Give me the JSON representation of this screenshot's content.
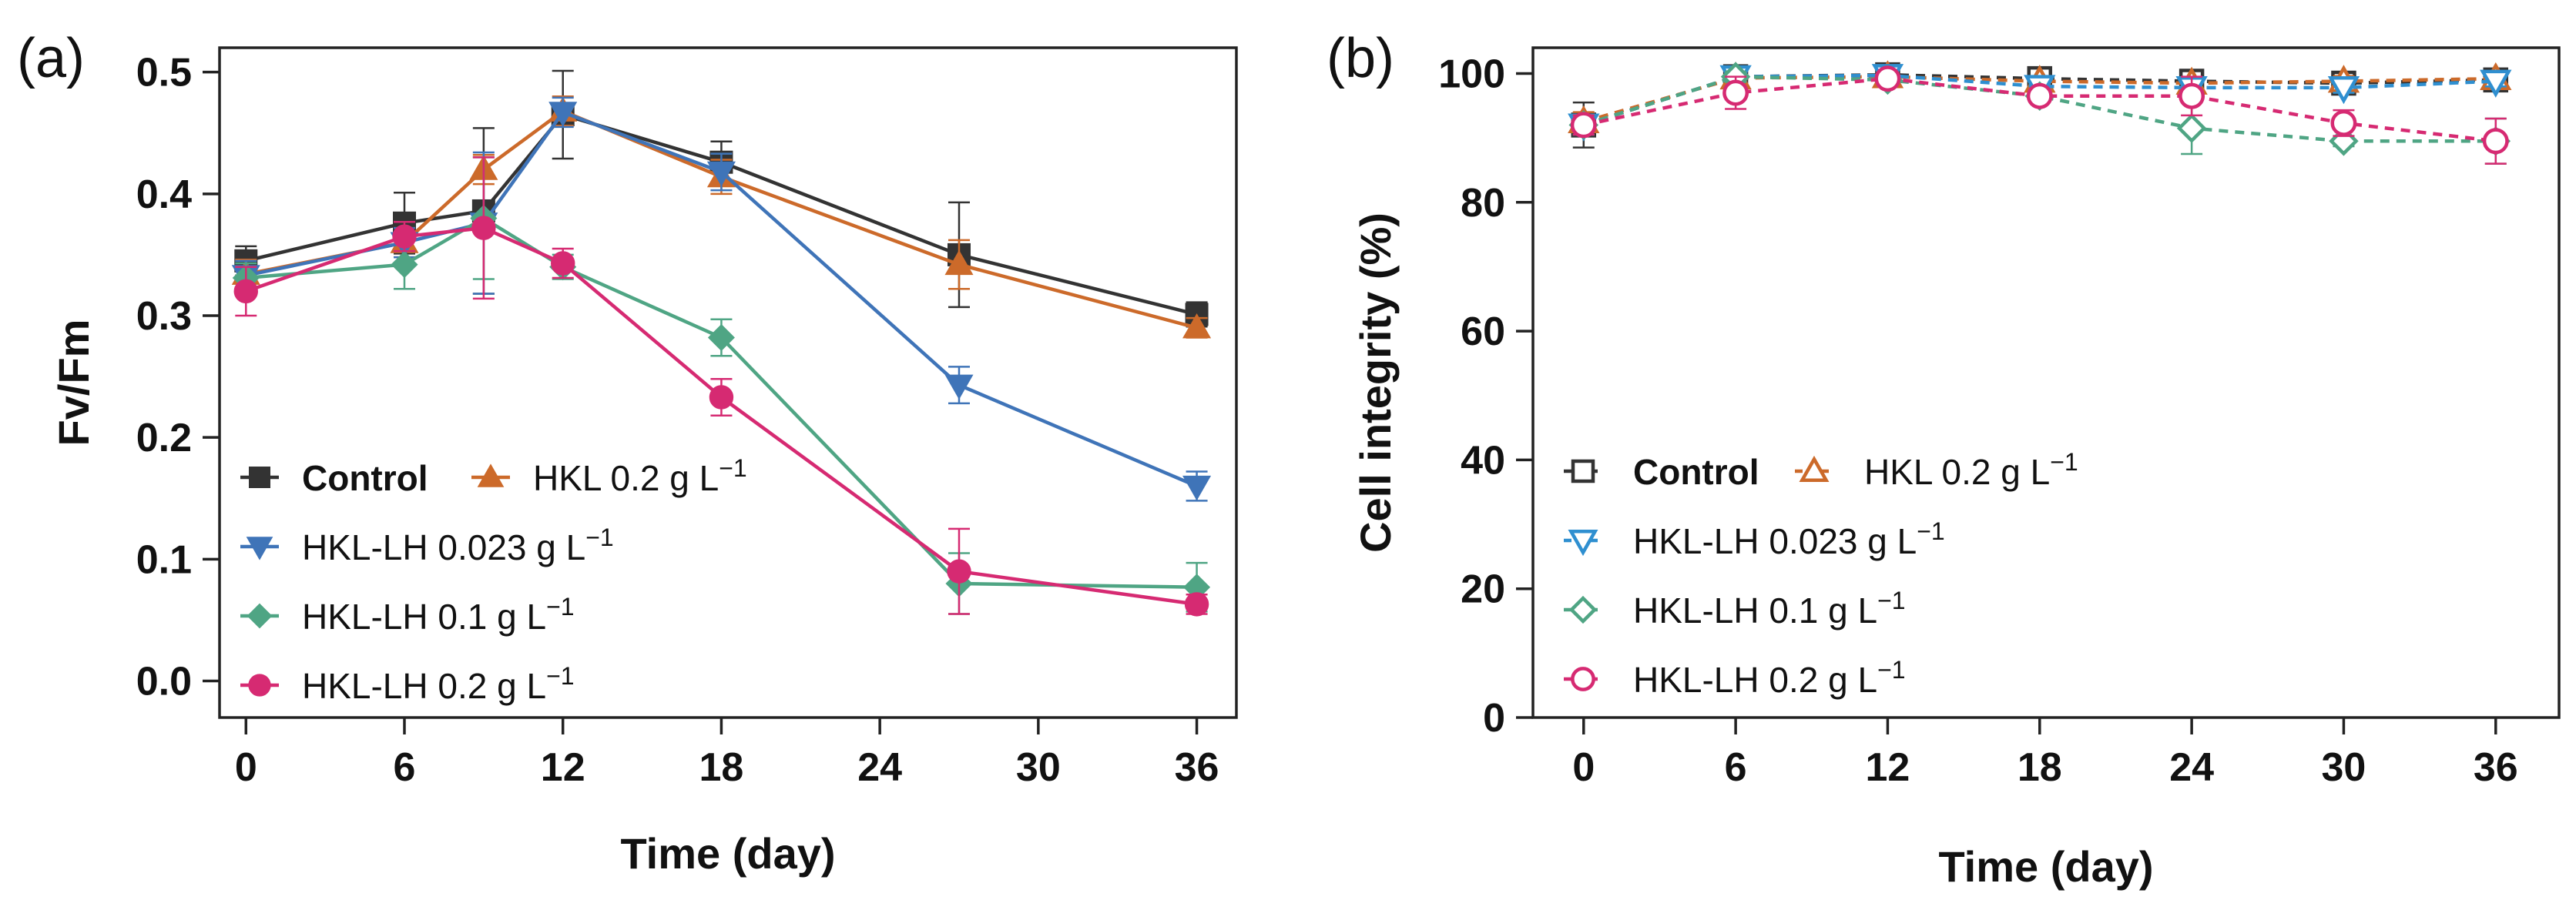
{
  "chart_data": [
    {
      "panel_label": "(a)",
      "type": "line",
      "xlabel": "Time (day)",
      "ylabel": "Fv/Fm",
      "xlim": [
        -1,
        37.5
      ],
      "ylim": [
        -0.03,
        0.52
      ],
      "xticks": [
        0,
        6,
        12,
        18,
        24,
        30,
        36
      ],
      "xtick_labels": [
        "0",
        "6",
        "12",
        "18",
        "24",
        "30",
        "36"
      ],
      "yticks": [
        0.0,
        0.1,
        0.2,
        0.3,
        0.4,
        0.5
      ],
      "ytick_labels": [
        "0.0",
        "0.1",
        "0.2",
        "0.3",
        "0.4",
        "0.5"
      ],
      "grid": false,
      "legend_position": "bottom-left",
      "series": [
        {
          "name": "Control",
          "legend_prefix": "Control",
          "legend_unit": "",
          "legend_sup": "",
          "bold": true,
          "color": "#333333",
          "marker": "square",
          "filled": true,
          "dashed": false,
          "x": [
            0,
            6,
            9,
            12,
            18,
            27,
            36
          ],
          "y": [
            0.345,
            0.376,
            0.386,
            0.465,
            0.426,
            0.35,
            0.301
          ],
          "err": [
            0.012,
            0.025,
            0.068,
            0.036,
            0.017,
            0.043,
            0.01
          ]
        },
        {
          "name": "HKL 0.2 g L−1",
          "legend_prefix": "HKL 0.2 g L",
          "legend_unit": "",
          "legend_sup": "−1",
          "bold": false,
          "color": "#cc6a2a",
          "marker": "triangle-up",
          "filled": true,
          "dashed": false,
          "x": [
            0,
            6,
            9,
            12,
            18,
            27,
            36
          ],
          "y": [
            0.334,
            0.36,
            0.42,
            0.468,
            0.414,
            0.342,
            0.29
          ],
          "err": [
            0.012,
            0.012,
            0.012,
            0.012,
            0.014,
            0.02,
            0.008
          ]
        },
        {
          "name": "HKL-LH 0.023 g L−1",
          "legend_prefix": "HKL-LH 0.023 g L",
          "legend_unit": "",
          "legend_sup": "−1",
          "bold": false,
          "color": "#3f74b8",
          "marker": "triangle-down",
          "filled": true,
          "dashed": false,
          "x": [
            0,
            6,
            9,
            12,
            18,
            27,
            36
          ],
          "y": [
            0.333,
            0.36,
            0.376,
            0.467,
            0.418,
            0.243,
            0.16
          ],
          "err": [
            0.012,
            0.012,
            0.058,
            0.012,
            0.015,
            0.015,
            0.012
          ]
        },
        {
          "name": "HKL-LH 0.1 g L−1",
          "legend_prefix": "HKL-LH 0.1 g L",
          "legend_unit": "",
          "legend_sup": "−1",
          "bold": false,
          "color": "#4fa584",
          "marker": "diamond",
          "filled": true,
          "dashed": false,
          "x": [
            0,
            6,
            9,
            12,
            18,
            27,
            36
          ],
          "y": [
            0.331,
            0.342,
            0.38,
            0.34,
            0.282,
            0.08,
            0.077
          ],
          "err": [
            0.012,
            0.02,
            0.05,
            0.01,
            0.015,
            0.025,
            0.02
          ]
        },
        {
          "name": "HKL-LH 0.2 g L−1",
          "legend_prefix": "HKL-LH 0.2 g L",
          "legend_unit": "",
          "legend_sup": "−1",
          "bold": false,
          "color": "#d62a72",
          "marker": "circle",
          "filled": true,
          "dashed": false,
          "x": [
            0,
            6,
            9,
            12,
            18,
            27,
            36
          ],
          "y": [
            0.32,
            0.365,
            0.372,
            0.343,
            0.233,
            0.09,
            0.063
          ],
          "err": [
            0.02,
            0.012,
            0.058,
            0.012,
            0.015,
            0.035,
            0.008
          ]
        }
      ]
    },
    {
      "panel_label": "(b)",
      "type": "line",
      "xlabel": "Time (day)",
      "ylabel": "Cell integrity (%)",
      "xlim": [
        -2,
        38.5
      ],
      "ylim": [
        0,
        104
      ],
      "xticks": [
        0,
        6,
        12,
        18,
        24,
        30,
        36
      ],
      "xtick_labels": [
        "0",
        "6",
        "12",
        "18",
        "24",
        "30",
        "36"
      ],
      "yticks": [
        0,
        20,
        40,
        60,
        80,
        100
      ],
      "ytick_labels": [
        "0",
        "20",
        "40",
        "60",
        "80",
        "100"
      ],
      "grid": false,
      "legend_position": "bottom-left",
      "series": [
        {
          "name": "Control",
          "legend_prefix": "Control",
          "legend_unit": "",
          "legend_sup": "",
          "bold": true,
          "color": "#333333",
          "marker": "square",
          "filled": false,
          "dashed": true,
          "x": [
            0,
            6,
            12,
            18,
            24,
            30,
            36
          ],
          "y": [
            92.0,
            99.5,
            99.8,
            99.2,
            98.8,
            98.5,
            99.0
          ],
          "err": [
            3.5,
            0.8,
            0.8,
            0.8,
            0.8,
            1.5,
            1.0
          ]
        },
        {
          "name": "HKL 0.2 g L−1",
          "legend_prefix": "HKL 0.2 g L",
          "legend_unit": "",
          "legend_sup": "−1",
          "bold": false,
          "color": "#cc6a2a",
          "marker": "triangle-up",
          "filled": false,
          "dashed": true,
          "x": [
            0,
            6,
            12,
            18,
            24,
            30,
            36
          ],
          "y": [
            92.5,
            99.3,
            99.5,
            98.8,
            98.5,
            98.8,
            99.2
          ],
          "err": [
            1.5,
            0.8,
            0.8,
            0.8,
            0.8,
            0.8,
            0.8
          ]
        },
        {
          "name": "HKL-LH 0.023 g L−1",
          "legend_prefix": "HKL-LH 0.023 g L",
          "legend_unit": "",
          "legend_sup": "−1",
          "bold": false,
          "color": "#2f8fd0",
          "marker": "triangle-down",
          "filled": false,
          "dashed": true,
          "x": [
            0,
            6,
            12,
            18,
            24,
            30,
            36
          ],
          "y": [
            92.0,
            99.5,
            99.7,
            98.0,
            97.8,
            97.8,
            98.8
          ],
          "err": [
            1.5,
            0.8,
            0.8,
            0.8,
            0.8,
            0.8,
            0.8
          ]
        },
        {
          "name": "HKL-LH 0.1 g L−1",
          "legend_prefix": "HKL-LH 0.1 g L",
          "legend_unit": "",
          "legend_sup": "−1",
          "bold": false,
          "color": "#4fa584",
          "marker": "diamond",
          "filled": false,
          "dashed": true,
          "x": [
            0,
            6,
            12,
            18,
            24,
            30,
            36
          ],
          "y": [
            92.0,
            99.5,
            99.0,
            96.5,
            91.5,
            89.5,
            89.5
          ],
          "err": [
            1.5,
            0.8,
            0.8,
            0.8,
            4.0,
            0.8,
            3.5
          ]
        },
        {
          "name": "HKL-LH 0.2 g L−1",
          "legend_prefix": "HKL-LH 0.2 g L",
          "legend_unit": "",
          "legend_sup": "−1",
          "bold": false,
          "color": "#d62a72",
          "marker": "circle",
          "filled": false,
          "dashed": true,
          "x": [
            0,
            6,
            12,
            18,
            24,
            30,
            36
          ],
          "y": [
            92.0,
            97.0,
            99.2,
            96.5,
            96.5,
            92.3,
            89.5
          ],
          "err": [
            1.5,
            2.5,
            0.8,
            0.8,
            3.0,
            2.0,
            3.5
          ]
        }
      ]
    }
  ]
}
